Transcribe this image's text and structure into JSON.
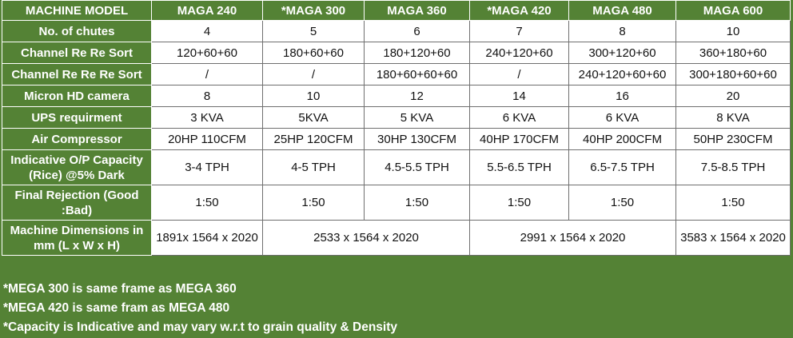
{
  "header": [
    "MACHINE MODEL",
    "MAGA 240",
    "*MAGA 300",
    "MAGA  360",
    "*MAGA 420",
    "MAGA 480",
    "MAGA 600"
  ],
  "rows": {
    "chutes": {
      "label": "No. of chutes",
      "values": [
        "4",
        "5",
        "6",
        "7",
        "8",
        "10"
      ]
    },
    "resort": {
      "label": "Channel Re Re Sort",
      "values": [
        "120+60+60",
        "180+60+60",
        "180+120+60",
        "240+120+60",
        "300+120+60",
        "360+180+60"
      ]
    },
    "reresort": {
      "label": "Channel Re Re Re Sort",
      "values": [
        "/",
        "/",
        "180+60+60+60",
        "/",
        "240+120+60+60",
        "300+180+60+60"
      ]
    },
    "camera": {
      "label": "Micron HD camera",
      "values": [
        "8",
        "10",
        "12",
        "14",
        "16",
        "20"
      ]
    },
    "ups": {
      "label": "UPS requirment",
      "values": [
        "3 KVA",
        "5KVA",
        "5 KVA",
        "6 KVA",
        "6 KVA",
        "8 KVA"
      ]
    },
    "air": {
      "label": "Air Compressor",
      "values": [
        "20HP 110CFM",
        "25HP 120CFM",
        "30HP 130CFM",
        "40HP 170CFM",
        "40HP 200CFM",
        "50HP 230CFM"
      ]
    },
    "capacity": {
      "label": "Indicative O/P  Capacity (Rice) @5% Dark",
      "values": [
        "3-4 TPH",
        "4-5 TPH",
        "4.5-5.5 TPH",
        "5.5-6.5 TPH",
        "6.5-7.5 TPH",
        "7.5-8.5 TPH"
      ]
    },
    "rejection": {
      "label": "Final Rejection  (Good :Bad)",
      "values": [
        "1:50",
        "1:50",
        "1:50",
        "1:50",
        "1:50",
        "1:50"
      ]
    },
    "dimensions": {
      "label": "Machine Dimensions in mm (L x W x H)",
      "values": [
        "1891x 1564 x 2020",
        "2533 x 1564 x 2020",
        "2991 x 1564 x 2020",
        "3583 x 1564 x 2020"
      ]
    }
  },
  "notes": [
    "*MEGA 300 is same frame as MEGA 360",
    "*MEGA 420 is same fram as MEGA 480",
    "*Capacity is Indicative and may vary w.r.t to grain quality & Density"
  ],
  "colors": {
    "header_green": "#548235",
    "cell_bg": "#ffffff",
    "border": "#6f6f6f"
  }
}
